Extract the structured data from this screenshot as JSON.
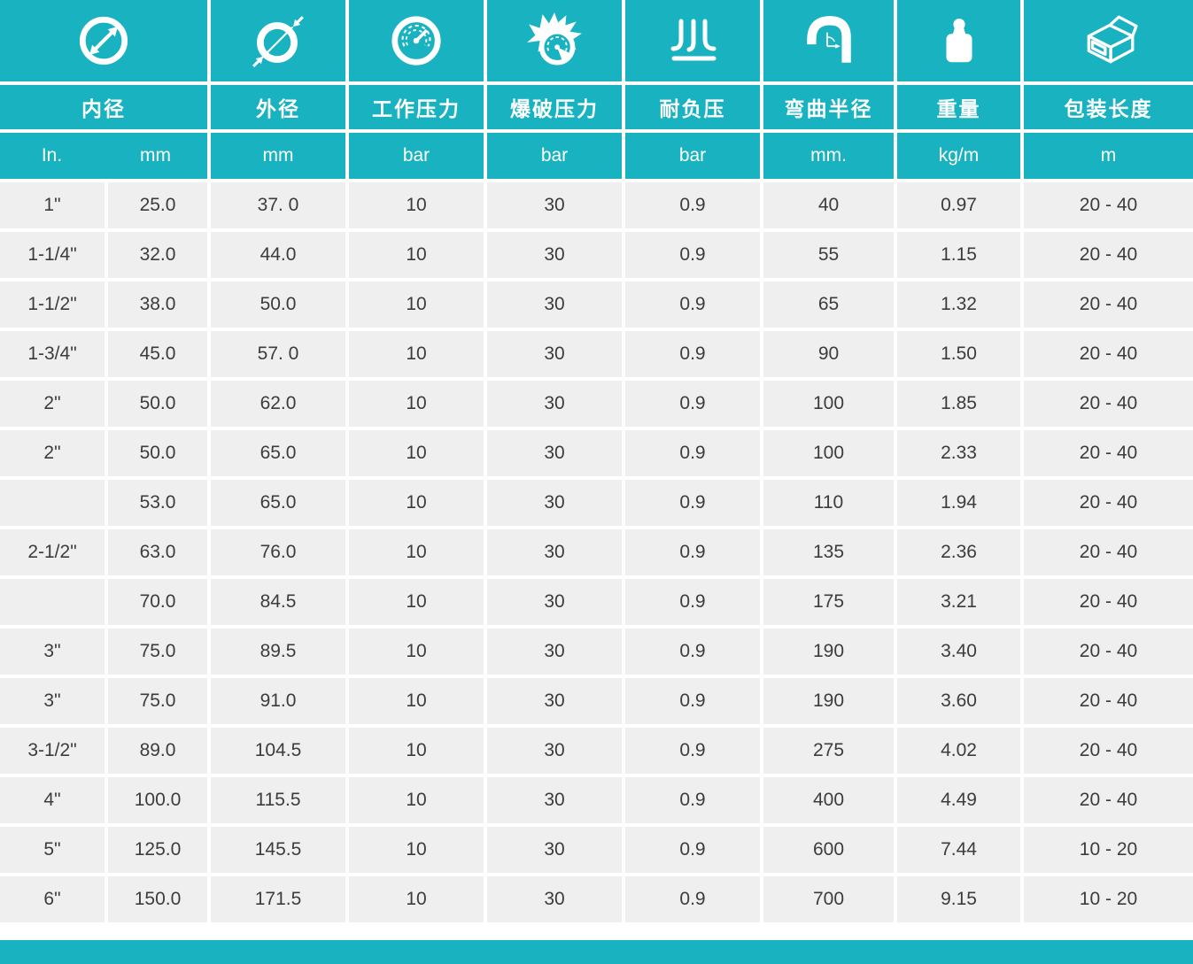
{
  "chart_data": {
    "type": "table",
    "title": "",
    "columns": [
      {
        "label": "内径",
        "icon": "inner-diameter-icon",
        "units": [
          "In.",
          "mm"
        ]
      },
      {
        "label": "外径",
        "icon": "outer-diameter-icon",
        "units": [
          "mm"
        ]
      },
      {
        "label": "工作压力",
        "icon": "working-pressure-icon",
        "units": [
          "bar"
        ]
      },
      {
        "label": "爆破压力",
        "icon": "burst-pressure-icon",
        "units": [
          "bar"
        ]
      },
      {
        "label": "耐负压",
        "icon": "vacuum-resistance-icon",
        "units": [
          "bar"
        ]
      },
      {
        "label": "弯曲半径",
        "icon": "bend-radius-icon",
        "units": [
          "mm."
        ]
      },
      {
        "label": "重量",
        "icon": "weight-icon",
        "units": [
          "kg/m"
        ]
      },
      {
        "label": "包装长度",
        "icon": "package-length-icon",
        "units": [
          "m"
        ]
      }
    ],
    "rows": [
      [
        "1\"",
        "25.0",
        "37. 0",
        "10",
        "30",
        "0.9",
        "40",
        "0.97",
        "20 - 40"
      ],
      [
        "1-1/4\"",
        "32.0",
        "44.0",
        "10",
        "30",
        "0.9",
        "55",
        "1.15",
        "20 - 40"
      ],
      [
        "1-1/2\"",
        "38.0",
        "50.0",
        "10",
        "30",
        "0.9",
        "65",
        "1.32",
        "20 - 40"
      ],
      [
        "1-3/4\"",
        "45.0",
        "57. 0",
        "10",
        "30",
        "0.9",
        "90",
        "1.50",
        "20 - 40"
      ],
      [
        "2\"",
        "50.0",
        "62.0",
        "10",
        "30",
        "0.9",
        "100",
        "1.85",
        "20 - 40"
      ],
      [
        "2\"",
        "50.0",
        "65.0",
        "10",
        "30",
        "0.9",
        "100",
        "2.33",
        "20 - 40"
      ],
      [
        "",
        "53.0",
        "65.0",
        "10",
        "30",
        "0.9",
        "110",
        "1.94",
        "20 - 40"
      ],
      [
        "2-1/2\"",
        "63.0",
        "76.0",
        "10",
        "30",
        "0.9",
        "135",
        "2.36",
        "20 - 40"
      ],
      [
        "",
        "70.0",
        "84.5",
        "10",
        "30",
        "0.9",
        "175",
        "3.21",
        "20 - 40"
      ],
      [
        "3\"",
        "75.0",
        "89.5",
        "10",
        "30",
        "0.9",
        "190",
        "3.40",
        "20 - 40"
      ],
      [
        "3\"",
        "75.0",
        "91.0",
        "10",
        "30",
        "0.9",
        "190",
        "3.60",
        "20 - 40"
      ],
      [
        "3-1/2\"",
        "89.0",
        "104.5",
        "10",
        "30",
        "0.9",
        "275",
        "4.02",
        "20 - 40"
      ],
      [
        "4\"",
        "100.0",
        "115.5",
        "10",
        "30",
        "0.9",
        "400",
        "4.49",
        "20 - 40"
      ],
      [
        "5\"",
        "125.0",
        "145.5",
        "10",
        "30",
        "0.9",
        "600",
        "7.44",
        "10 - 20"
      ],
      [
        "6\"",
        "150.0",
        "171.5",
        "10",
        "30",
        "0.9",
        "700",
        "9.15",
        "10 - 20"
      ]
    ]
  },
  "colors": {
    "accent": "#18b2c1",
    "row_bg": "#efefef",
    "text": "#3c3c3c"
  }
}
